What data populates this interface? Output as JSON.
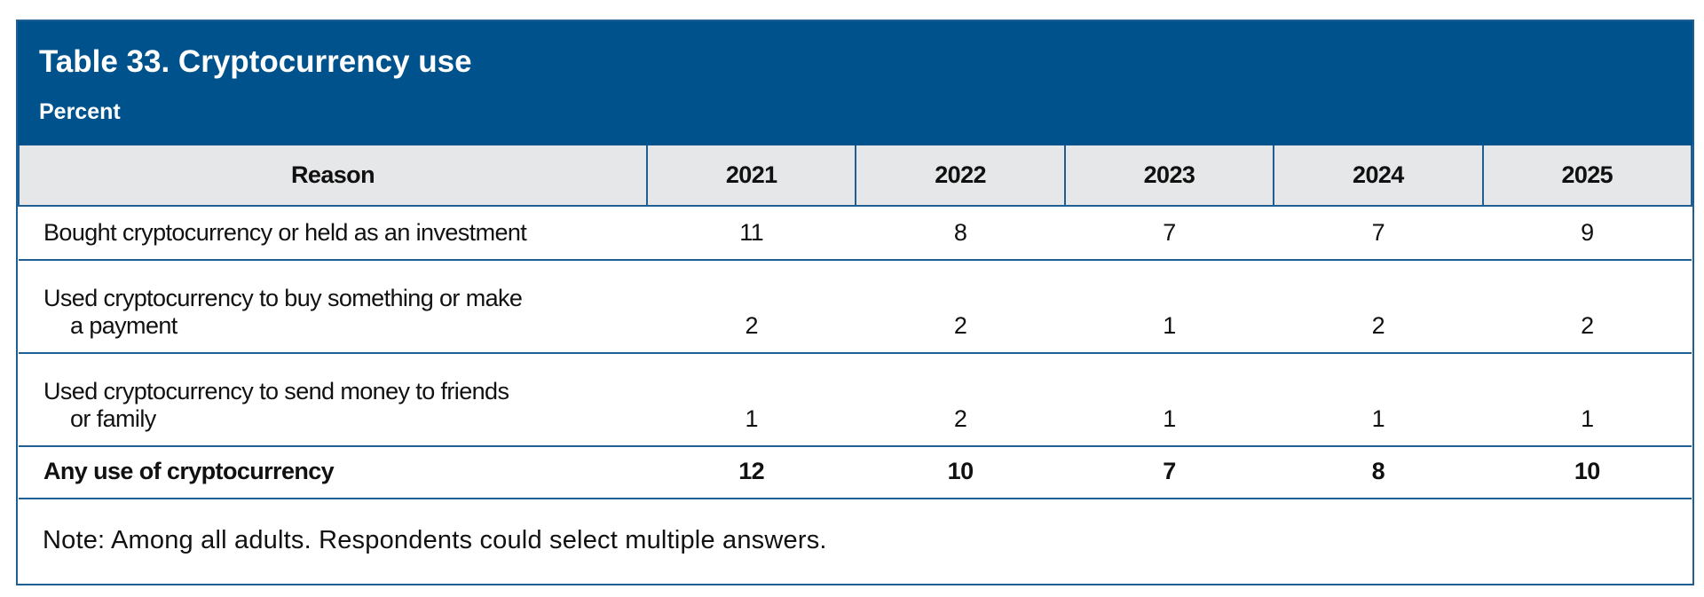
{
  "header": {
    "title": "Table 33. Cryptocurrency use",
    "subtitle": "Percent"
  },
  "table": {
    "columns": [
      "Reason",
      "2021",
      "2022",
      "2023",
      "2024",
      "2025"
    ],
    "rows": [
      {
        "label": [
          "Bought cryptocurrency or held as an investment"
        ],
        "values": [
          11,
          8,
          7,
          7,
          9
        ]
      },
      {
        "label": [
          "Used cryptocurrency to buy something or make",
          "a payment"
        ],
        "values": [
          2,
          2,
          1,
          2,
          2
        ]
      },
      {
        "label": [
          "Used cryptocurrency to send money to friends",
          "or family"
        ],
        "values": [
          1,
          2,
          1,
          1,
          1
        ]
      }
    ],
    "total": {
      "label": [
        "Any use of cryptocurrency"
      ],
      "values": [
        12,
        10,
        7,
        8,
        10
      ]
    }
  },
  "note": "Note: Among all adults. Respondents could select multiple answers."
}
